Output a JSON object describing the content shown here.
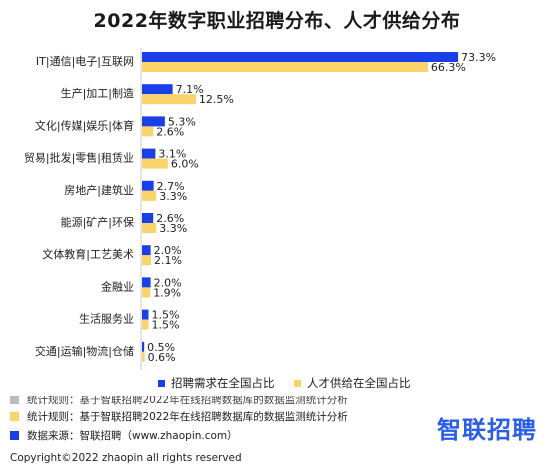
{
  "chart_data": {
    "type": "bar",
    "orientation": "horizontal",
    "title": "2022年数字职业招聘分布、人才供给分布",
    "categories": [
      "IT|通信|电子|互联网",
      "生产|加工|制造",
      "文化|传媒|娱乐|体育",
      "贸易|批发|零售|租赁业",
      "房地产|建筑业",
      "能源|矿产|环保",
      "文体教育|工艺美术",
      "金融业",
      "生活服务业",
      "交通|运输|物流|仓储"
    ],
    "series": [
      {
        "name": "招聘需求在全国占比",
        "color": "#1a3ee8",
        "values": [
          73.3,
          7.1,
          5.3,
          3.1,
          2.7,
          2.6,
          2.0,
          2.0,
          1.5,
          0.5
        ]
      },
      {
        "name": "人才供给在全国占比",
        "color": "#fbd36b",
        "values": [
          66.3,
          12.5,
          2.6,
          6.0,
          3.3,
          3.3,
          2.1,
          1.9,
          1.5,
          0.6
        ]
      }
    ],
    "value_suffix": "%",
    "xlim": [
      0,
      80
    ],
    "legend_position": "bottom-right",
    "grid": false
  },
  "footer": {
    "ghost_text": "统计规则：基于智联招聘2022年在线招聘数据库的数据监测统计分析",
    "stat_rule": "统计规则：基于智联招聘2022年在线招聘数据库的数据监测统计分析",
    "data_source": "数据来源：智联招聘（www.zhaopin.com）",
    "stat_rule_color": "#fbd36b",
    "data_source_color": "#1a3ee8"
  },
  "logo": {
    "text": "智联招聘",
    "color": "#2a5ee8"
  },
  "copyright": "Copyright©2022 zhaopin all rights reserved"
}
